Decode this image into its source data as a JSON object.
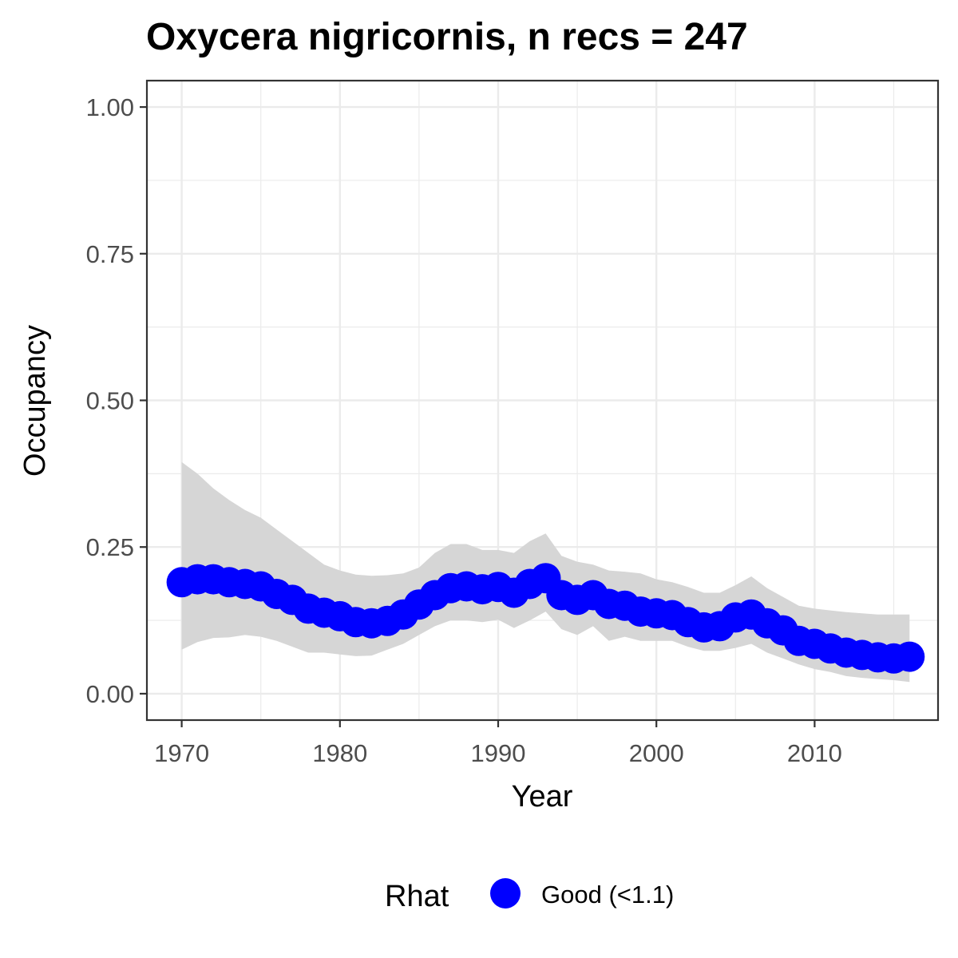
{
  "chart_data": {
    "type": "line",
    "title": "Oxycera nigricornis, n recs = 247",
    "xlabel": "Year",
    "ylabel": "Occupancy",
    "xlim": [
      1967.8,
      1917.8
    ],
    "ylim": [
      -0.045,
      1.045
    ],
    "x_ticks": [
      1970,
      1980,
      1990,
      2000,
      2010
    ],
    "x_tick_labels": [
      "1970",
      "1980",
      "1990",
      "2000",
      "2010"
    ],
    "y_ticks": [
      0,
      0.25,
      0.5,
      0.75,
      1
    ],
    "y_tick_labels": [
      "0.00",
      "0.25",
      "0.50",
      "0.75",
      "1.00"
    ],
    "grid": true,
    "legend": {
      "title": "Rhat",
      "position": "bottom",
      "entries": [
        {
          "label": "Good (<1.1)",
          "color": "#0000ff"
        }
      ]
    },
    "colors": {
      "point": "#0000ff",
      "ribbon": "#d6d6d6",
      "grid": "#ebebeb",
      "panel_border": "#333333"
    },
    "series": [
      {
        "name": "Good (<1.1)",
        "x": [
          1970,
          1971,
          1972,
          1973,
          1974,
          1975,
          1976,
          1977,
          1978,
          1979,
          1980,
          1981,
          1982,
          1983,
          1984,
          1985,
          1986,
          1987,
          1988,
          1989,
          1990,
          1991,
          1992,
          1993,
          1994,
          1995,
          1996,
          1997,
          1998,
          1999,
          2000,
          2001,
          2002,
          2003,
          2004,
          2005,
          2006,
          2007,
          2008,
          2009,
          2010,
          2011,
          2012,
          2013,
          2014,
          2015,
          2016
        ],
        "y": [
          0.19,
          0.195,
          0.195,
          0.19,
          0.187,
          0.183,
          0.17,
          0.16,
          0.145,
          0.138,
          0.132,
          0.122,
          0.12,
          0.124,
          0.135,
          0.152,
          0.168,
          0.18,
          0.183,
          0.178,
          0.182,
          0.172,
          0.187,
          0.197,
          0.168,
          0.16,
          0.168,
          0.153,
          0.15,
          0.14,
          0.137,
          0.134,
          0.122,
          0.113,
          0.115,
          0.13,
          0.135,
          0.12,
          0.108,
          0.09,
          0.085,
          0.077,
          0.07,
          0.066,
          0.062,
          0.06,
          0.063
        ],
        "lower": [
          0.075,
          0.088,
          0.095,
          0.096,
          0.1,
          0.097,
          0.09,
          0.08,
          0.07,
          0.07,
          0.067,
          0.064,
          0.065,
          0.075,
          0.085,
          0.1,
          0.115,
          0.125,
          0.125,
          0.122,
          0.126,
          0.112,
          0.125,
          0.14,
          0.11,
          0.1,
          0.115,
          0.09,
          0.097,
          0.09,
          0.09,
          0.09,
          0.08,
          0.073,
          0.073,
          0.078,
          0.085,
          0.07,
          0.06,
          0.05,
          0.042,
          0.037,
          0.03,
          0.027,
          0.025,
          0.023,
          0.02
        ],
        "upper": [
          0.395,
          0.375,
          0.35,
          0.33,
          0.313,
          0.3,
          0.28,
          0.26,
          0.24,
          0.22,
          0.21,
          0.203,
          0.201,
          0.202,
          0.205,
          0.215,
          0.24,
          0.255,
          0.255,
          0.245,
          0.245,
          0.24,
          0.26,
          0.273,
          0.235,
          0.225,
          0.22,
          0.21,
          0.208,
          0.205,
          0.195,
          0.19,
          0.182,
          0.172,
          0.172,
          0.185,
          0.2,
          0.18,
          0.165,
          0.15,
          0.145,
          0.142,
          0.139,
          0.137,
          0.135,
          0.135,
          0.135
        ]
      }
    ]
  }
}
